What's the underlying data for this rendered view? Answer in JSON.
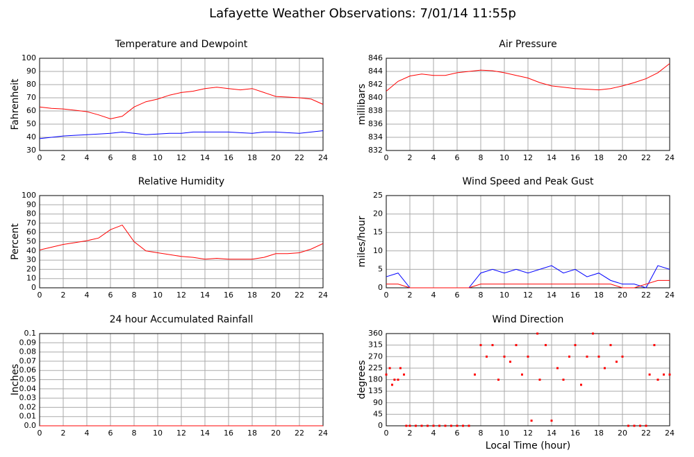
{
  "title": "Lafayette Weather Observations: 7/01/14 11:55p",
  "chart_data": [
    {
      "type": "line",
      "title": "Temperature and Dewpoint",
      "ylabel": "Fahrenheit",
      "x": [
        0,
        1,
        2,
        3,
        4,
        5,
        6,
        7,
        8,
        9,
        10,
        11,
        12,
        13,
        14,
        15,
        16,
        17,
        18,
        19,
        20,
        21,
        22,
        23,
        24
      ],
      "series": [
        {
          "color": "#ff0000",
          "values": [
            63,
            62,
            61.5,
            60.5,
            59.5,
            57,
            54,
            56,
            63,
            67,
            69,
            72,
            74,
            75,
            77,
            78,
            77,
            76,
            77,
            74,
            71,
            70.5,
            70,
            69,
            65
          ]
        },
        {
          "color": "#0000ff",
          "values": [
            39,
            40,
            41,
            41.5,
            42,
            42.5,
            43,
            44,
            43,
            42,
            42.5,
            43,
            43,
            44,
            44,
            44,
            44,
            43.5,
            43,
            44,
            44,
            43.5,
            43,
            44,
            45
          ]
        }
      ],
      "xlim": [
        0,
        24
      ],
      "xticks": [
        0,
        2,
        4,
        6,
        8,
        10,
        12,
        14,
        16,
        18,
        20,
        22,
        24
      ],
      "ylim": [
        30,
        100
      ],
      "yticks": [
        30,
        40,
        50,
        60,
        70,
        80,
        90,
        100
      ],
      "grid": true
    },
    {
      "type": "line",
      "title": "Air Pressure",
      "ylabel": "millibars",
      "x": [
        0,
        1,
        2,
        3,
        4,
        5,
        6,
        7,
        8,
        9,
        10,
        11,
        12,
        13,
        14,
        15,
        16,
        17,
        18,
        19,
        20,
        21,
        22,
        23,
        24
      ],
      "series": [
        {
          "color": "#ff0000",
          "values": [
            841,
            842.5,
            843.3,
            843.6,
            843.4,
            843.4,
            843.8,
            844,
            844.2,
            844.1,
            843.8,
            843.4,
            843,
            842.3,
            841.8,
            841.6,
            841.4,
            841.3,
            841.2,
            841.4,
            841.8,
            842.3,
            842.9,
            843.8,
            845.2
          ]
        }
      ],
      "xlim": [
        0,
        24
      ],
      "xticks": [
        0,
        2,
        4,
        6,
        8,
        10,
        12,
        14,
        16,
        18,
        20,
        22,
        24
      ],
      "ylim": [
        832,
        846
      ],
      "yticks": [
        832,
        834,
        836,
        838,
        840,
        842,
        844,
        846
      ],
      "grid": true
    },
    {
      "type": "line",
      "title": "Relative Humidity",
      "ylabel": "Percent",
      "x": [
        0,
        1,
        2,
        3,
        4,
        5,
        6,
        7,
        8,
        9,
        10,
        11,
        12,
        13,
        14,
        15,
        16,
        17,
        18,
        19,
        20,
        21,
        22,
        23,
        24
      ],
      "series": [
        {
          "color": "#ff0000",
          "values": [
            41,
            44,
            47,
            49,
            51,
            54,
            63,
            68,
            50,
            40,
            38,
            36,
            34,
            33,
            31,
            32,
            31,
            31,
            31,
            33,
            37,
            37,
            38,
            42,
            48
          ]
        }
      ],
      "xlim": [
        0,
        24
      ],
      "xticks": [
        0,
        2,
        4,
        6,
        8,
        10,
        12,
        14,
        16,
        18,
        20,
        22,
        24
      ],
      "ylim": [
        0,
        100
      ],
      "yticks": [
        0,
        10,
        20,
        30,
        40,
        50,
        60,
        70,
        80,
        90,
        100
      ],
      "grid": true
    },
    {
      "type": "line",
      "title": "Wind Speed and Peak Gust",
      "ylabel": "miles/hour",
      "x": [
        0,
        1,
        2,
        3,
        4,
        5,
        6,
        7,
        8,
        9,
        10,
        11,
        12,
        13,
        14,
        15,
        16,
        17,
        18,
        19,
        20,
        21,
        22,
        23,
        24
      ],
      "series": [
        {
          "color": "#0000ff",
          "values": [
            3,
            4,
            0,
            0,
            0,
            0,
            0,
            0,
            4,
            5,
            4,
            5,
            4,
            5,
            6,
            4,
            5,
            3,
            4,
            2,
            1,
            1,
            0,
            6,
            5
          ]
        },
        {
          "color": "#ff0000",
          "values": [
            1,
            1,
            0,
            0,
            0,
            0,
            0,
            0,
            1,
            1,
            1,
            1,
            1,
            1,
            1,
            1,
            1,
            1,
            1,
            1,
            0,
            0,
            1,
            2,
            2
          ]
        }
      ],
      "xlim": [
        0,
        24
      ],
      "xticks": [
        0,
        2,
        4,
        6,
        8,
        10,
        12,
        14,
        16,
        18,
        20,
        22,
        24
      ],
      "ylim": [
        0,
        25
      ],
      "yticks": [
        0,
        5,
        10,
        15,
        20,
        25
      ],
      "grid": true
    },
    {
      "type": "line",
      "title": "24 hour Accumulated Rainfall",
      "ylabel": "Inches",
      "x": [
        0,
        24
      ],
      "series": [
        {
          "color": "#ff0000",
          "values": [
            0,
            0
          ]
        }
      ],
      "xlim": [
        0,
        24
      ],
      "xticks": [
        0,
        2,
        4,
        6,
        8,
        10,
        12,
        14,
        16,
        18,
        20,
        22,
        24
      ],
      "ylim": [
        0,
        0.1
      ],
      "yticks": [
        {
          "value": 0,
          "label": "0.0"
        },
        0.01,
        0.02,
        0.03,
        0.04,
        0.05,
        0.06,
        0.07,
        0.08,
        0.09,
        0.1
      ],
      "grid": true
    },
    {
      "type": "scatter",
      "title": "Wind Direction",
      "ylabel": "degrees",
      "xlabel": "Local Time (hour)",
      "x": [
        0,
        0.3,
        0.5,
        0.7,
        1,
        1.2,
        1.5,
        1.7,
        2,
        2.5,
        3,
        3.5,
        4,
        4.5,
        5,
        5.5,
        6,
        6.5,
        7,
        7.5,
        8,
        8.5,
        9,
        9.5,
        10,
        10.5,
        11,
        11.5,
        12,
        12.3,
        12.8,
        13,
        13.5,
        14,
        14.5,
        15,
        15.5,
        16,
        16.5,
        17,
        17.5,
        18,
        18.5,
        19,
        19.5,
        20,
        20.5,
        21,
        21.5,
        22,
        22.3,
        22.7,
        23,
        23.5,
        24
      ],
      "series": [
        {
          "color": "#ff0000",
          "values": [
            200,
            225,
            160,
            180,
            180,
            225,
            200,
            0,
            0,
            0,
            0,
            0,
            0,
            0,
            0,
            0,
            0,
            0,
            0,
            200,
            315,
            270,
            315,
            180,
            270,
            250,
            315,
            200,
            270,
            20,
            360,
            180,
            315,
            20,
            225,
            180,
            270,
            315,
            160,
            270,
            360,
            270,
            225,
            315,
            250,
            270,
            0,
            0,
            0,
            0,
            200,
            315,
            180,
            200,
            200
          ]
        }
      ],
      "xlim": [
        0,
        24
      ],
      "xticks": [
        0,
        2,
        4,
        6,
        8,
        10,
        12,
        14,
        16,
        18,
        20,
        22,
        24
      ],
      "ylim": [
        0,
        360
      ],
      "yticks": [
        0,
        45,
        90,
        135,
        180,
        225,
        270,
        315,
        360
      ],
      "grid": true
    }
  ]
}
